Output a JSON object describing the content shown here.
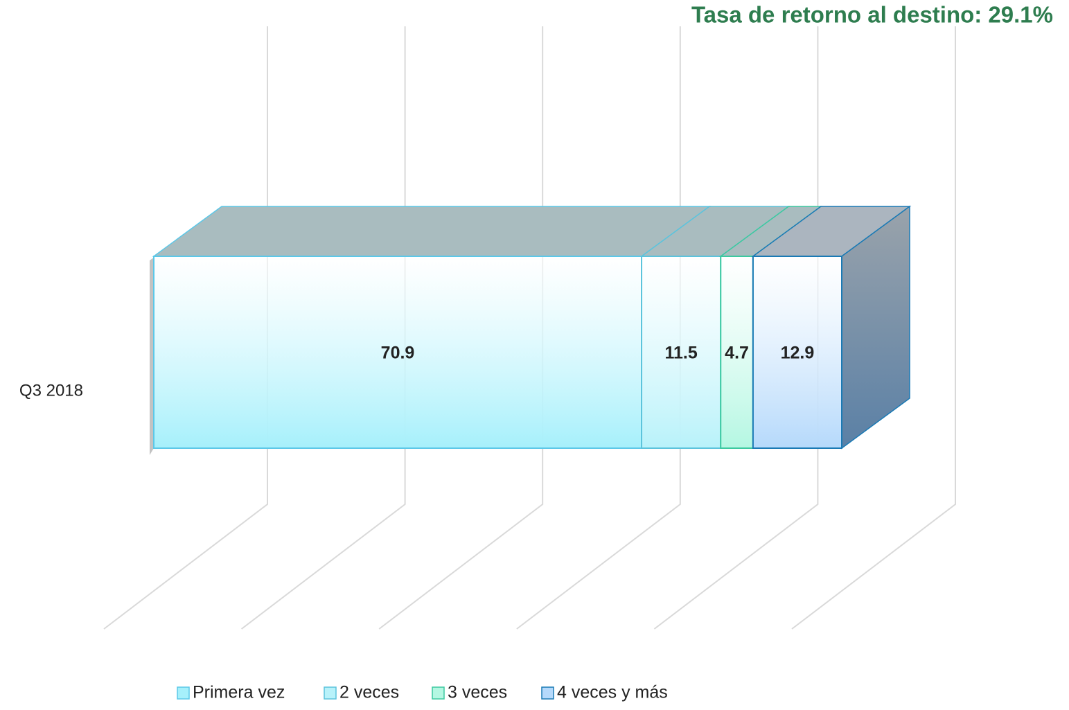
{
  "chart_data": {
    "type": "bar3d_stacked_horizontal",
    "title": "Tasa de retorno al destino: 29.1%",
    "categories": [
      "Q3 2018"
    ],
    "series": [
      {
        "name": "Primera vez",
        "color": "#a6f0fb",
        "values": [
          70.9
        ]
      },
      {
        "name": "2 veces",
        "color": "#b8f2fa",
        "values": [
          11.5
        ]
      },
      {
        "name": "3 veces",
        "color": "#b4f7e2",
        "values": [
          4.7
        ]
      },
      {
        "name": "4 veces y más",
        "color": "#b5d9fb",
        "values": [
          12.9
        ]
      }
    ],
    "xlim": [
      0,
      100
    ],
    "xticks": [
      0,
      20,
      40,
      60,
      80,
      100
    ],
    "grid": true
  }
}
